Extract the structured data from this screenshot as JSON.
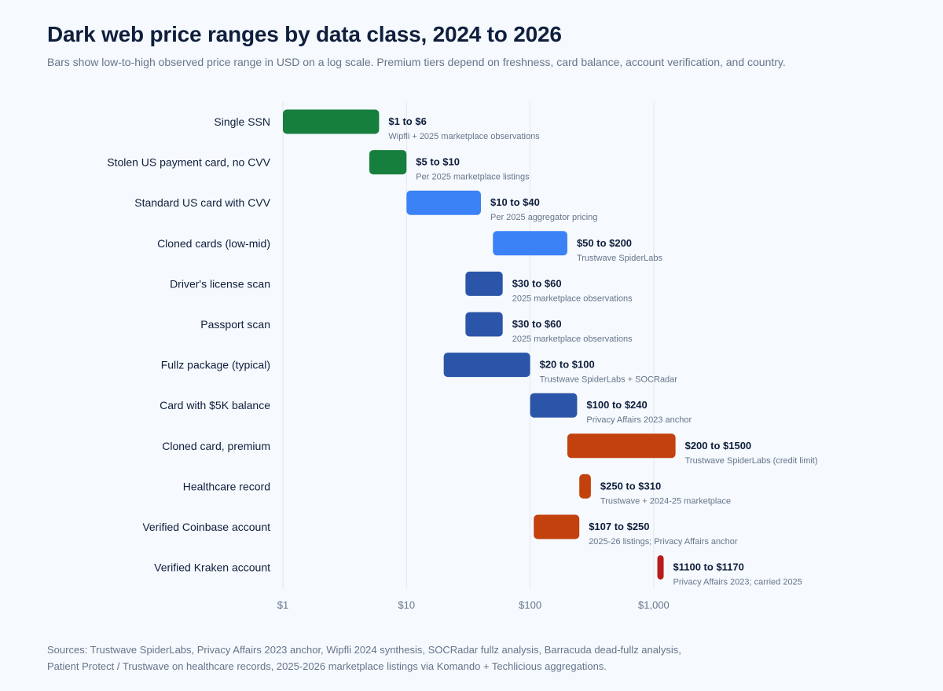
{
  "header": {
    "title": "Dark web price ranges by data class, 2024 to 2026",
    "subtitle": "Bars show low-to-high observed price range in USD on a log scale. Premium tiers depend on freshness, card balance, account verification, and country."
  },
  "colors": {
    "green": "#177f3e",
    "blue": "#3b82f6",
    "navy": "#2b55a8",
    "orange": "#c2410c",
    "red": "#b91c1c",
    "grid": "#e3e8ef",
    "label": "#0f1f3d",
    "muted": "#66758c"
  },
  "chart_data": {
    "type": "bar",
    "orientation": "horizontal-range",
    "title": "Dark web price ranges by data class, 2024 to 2026",
    "xlabel": "",
    "ylabel": "",
    "xscale": "log",
    "xlim": [
      1,
      1000
    ],
    "xticks": [
      1,
      10,
      100,
      1000
    ],
    "xtick_labels": [
      "$1",
      "$10",
      "$100",
      "$1,000"
    ],
    "grid": true,
    "categories": [
      "Single SSN",
      "Stolen US payment card, no CVV",
      "Standard US card with CVV",
      "Cloned cards (low-mid)",
      "Driver's license scan",
      "Passport scan",
      "Fullz package (typical)",
      "Card with $5K balance",
      "Cloned card, premium",
      "Healthcare record",
      "Verified Coinbase account",
      "Verified Kraken account"
    ],
    "rows": [
      {
        "label": "Single SSN",
        "low": 1,
        "high": 6,
        "range_label": "$1 to $6",
        "source": "Wipfli + 2025 marketplace observations",
        "color": "green"
      },
      {
        "label": "Stolen US payment card, no CVV",
        "low": 5,
        "high": 10,
        "range_label": "$5 to $10",
        "source": "Per 2025 marketplace listings",
        "color": "green"
      },
      {
        "label": "Standard US card with CVV",
        "low": 10,
        "high": 40,
        "range_label": "$10 to $40",
        "source": "Per 2025 aggregator pricing",
        "color": "blue"
      },
      {
        "label": "Cloned cards (low-mid)",
        "low": 50,
        "high": 200,
        "range_label": "$50 to $200",
        "source": "Trustwave SpiderLabs",
        "color": "blue"
      },
      {
        "label": "Driver's license scan",
        "low": 30,
        "high": 60,
        "range_label": "$30 to $60",
        "source": "2025 marketplace observations",
        "color": "navy"
      },
      {
        "label": "Passport scan",
        "low": 30,
        "high": 60,
        "range_label": "$30 to $60",
        "source": "2025 marketplace observations",
        "color": "navy"
      },
      {
        "label": "Fullz package (typical)",
        "low": 20,
        "high": 100,
        "range_label": "$20 to $100",
        "source": "Trustwave SpiderLabs + SOCRadar",
        "color": "navy"
      },
      {
        "label": "Card with $5K balance",
        "low": 100,
        "high": 240,
        "range_label": "$100 to $240",
        "source": "Privacy Affairs 2023 anchor",
        "color": "navy"
      },
      {
        "label": "Cloned card, premium",
        "low": 200,
        "high": 1500,
        "range_label": "$200 to $1500",
        "source": "Trustwave SpiderLabs (credit limit)",
        "color": "orange"
      },
      {
        "label": "Healthcare record",
        "low": 250,
        "high": 310,
        "range_label": "$250 to $310",
        "source": "Trustwave + 2024-25 marketplace",
        "color": "orange"
      },
      {
        "label": "Verified Coinbase account",
        "low": 107,
        "high": 250,
        "range_label": "$107 to $250",
        "source": "2025-26 listings; Privacy Affairs anchor",
        "color": "orange"
      },
      {
        "label": "Verified Kraken account",
        "low": 1100,
        "high": 1170,
        "range_label": "$1100 to $1170",
        "source": "Privacy Affairs 2023; carried 2025",
        "color": "red"
      }
    ]
  },
  "footer": {
    "line1": "Sources: Trustwave SpiderLabs, Privacy Affairs 2023 anchor, Wipfli 2024 synthesis, SOCRadar fullz analysis, Barracuda dead-fullz analysis,",
    "line2": "Patient Protect / Trustwave on healthcare records, 2025-2026 marketplace listings via Komando + Techlicious aggregations."
  }
}
